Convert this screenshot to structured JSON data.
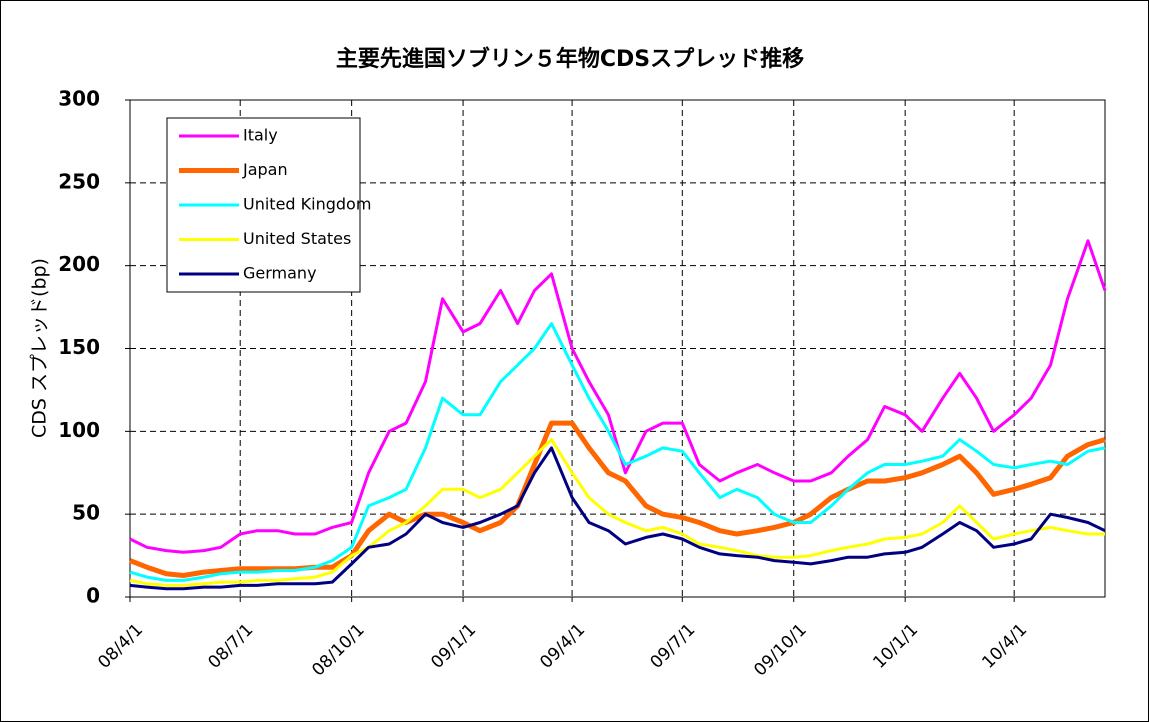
{
  "chart_data": {
    "type": "line",
    "title": "主要先進国ソブリン５年物CDSスプレッド推移",
    "y_label": "CDS スプレッド(bp)",
    "x": [
      "08/4/1",
      "08/4/15",
      "08/5/1",
      "08/5/15",
      "08/6/1",
      "08/6/15",
      "08/7/1",
      "08/7/15",
      "08/8/1",
      "08/8/15",
      "08/9/1",
      "08/9/15",
      "08/10/1",
      "08/10/15",
      "08/11/1",
      "08/11/15",
      "08/12/1",
      "08/12/15",
      "09/1/1",
      "09/1/15",
      "09/2/1",
      "09/2/15",
      "09/3/1",
      "09/3/15",
      "09/4/1",
      "09/4/15",
      "09/5/1",
      "09/5/15",
      "09/6/1",
      "09/6/15",
      "09/7/1",
      "09/7/15",
      "09/8/1",
      "09/8/15",
      "09/9/1",
      "09/9/15",
      "09/10/1",
      "09/10/15",
      "09/11/1",
      "09/11/15",
      "09/12/1",
      "09/12/15",
      "10/1/1",
      "10/1/15",
      "10/2/1",
      "10/2/15",
      "10/3/1",
      "10/3/15",
      "10/4/1",
      "10/4/15",
      "10/5/1",
      "10/5/15",
      "10/6/1",
      "10/6/15"
    ],
    "series": [
      {
        "name": "Italy",
        "color": "#ff00ff",
        "width": 3,
        "values": [
          35,
          30,
          28,
          27,
          28,
          30,
          38,
          40,
          40,
          38,
          38,
          42,
          45,
          75,
          100,
          105,
          130,
          180,
          160,
          165,
          185,
          165,
          185,
          195,
          150,
          130,
          110,
          75,
          100,
          105,
          105,
          80,
          70,
          75,
          80,
          75,
          70,
          70,
          75,
          85,
          95,
          115,
          110,
          100,
          120,
          135,
          120,
          100,
          110,
          120,
          140,
          180,
          215,
          185
        ]
      },
      {
        "name": "Japan",
        "color": "#ff6600",
        "width": 5,
        "values": [
          22,
          18,
          14,
          13,
          15,
          16,
          17,
          17,
          17,
          17,
          18,
          18,
          25,
          40,
          50,
          45,
          50,
          50,
          45,
          40,
          45,
          55,
          80,
          105,
          105,
          90,
          75,
          70,
          55,
          50,
          48,
          45,
          40,
          38,
          40,
          42,
          45,
          50,
          60,
          65,
          70,
          70,
          72,
          75,
          80,
          85,
          75,
          62,
          65,
          68,
          72,
          85,
          92,
          95
        ]
      },
      {
        "name": "United Kingdom",
        "color": "#00ffff",
        "width": 3,
        "values": [
          15,
          12,
          10,
          10,
          12,
          14,
          15,
          15,
          16,
          16,
          18,
          22,
          30,
          55,
          60,
          65,
          90,
          120,
          110,
          110,
          130,
          140,
          150,
          165,
          140,
          120,
          100,
          80,
          85,
          90,
          88,
          75,
          60,
          65,
          60,
          50,
          45,
          45,
          55,
          65,
          75,
          80,
          80,
          82,
          85,
          95,
          88,
          80,
          78,
          80,
          82,
          80,
          88,
          90
        ]
      },
      {
        "name": "United States",
        "color": "#ffff00",
        "width": 3,
        "values": [
          10,
          8,
          7,
          7,
          8,
          9,
          9,
          10,
          10,
          11,
          12,
          15,
          25,
          30,
          40,
          45,
          55,
          65,
          65,
          60,
          65,
          75,
          85,
          95,
          75,
          60,
          50,
          45,
          40,
          42,
          38,
          32,
          30,
          28,
          25,
          24,
          24,
          25,
          28,
          30,
          32,
          35,
          36,
          38,
          45,
          55,
          45,
          35,
          38,
          40,
          42,
          40,
          38,
          38
        ]
      },
      {
        "name": "Germany",
        "color": "#000080",
        "width": 3,
        "values": [
          7,
          6,
          5,
          5,
          6,
          6,
          7,
          7,
          8,
          8,
          8,
          9,
          20,
          30,
          32,
          38,
          50,
          45,
          42,
          45,
          50,
          55,
          75,
          90,
          60,
          45,
          40,
          32,
          36,
          38,
          35,
          30,
          26,
          25,
          24,
          22,
          21,
          20,
          22,
          24,
          24,
          26,
          27,
          30,
          38,
          45,
          40,
          30,
          32,
          35,
          50,
          48,
          45,
          40
        ]
      }
    ],
    "xlim": [
      "08/4/1",
      "10/6/15"
    ],
    "xticks": [
      "08/4/1",
      "08/7/1",
      "08/10/1",
      "09/1/1",
      "09/4/1",
      "09/7/1",
      "09/10/1",
      "10/1/1",
      "10/4/1"
    ],
    "ylim": [
      0,
      300
    ],
    "yticks": [
      0,
      50,
      100,
      150,
      200,
      250,
      300
    ],
    "grid": true,
    "legend": "upper left"
  }
}
